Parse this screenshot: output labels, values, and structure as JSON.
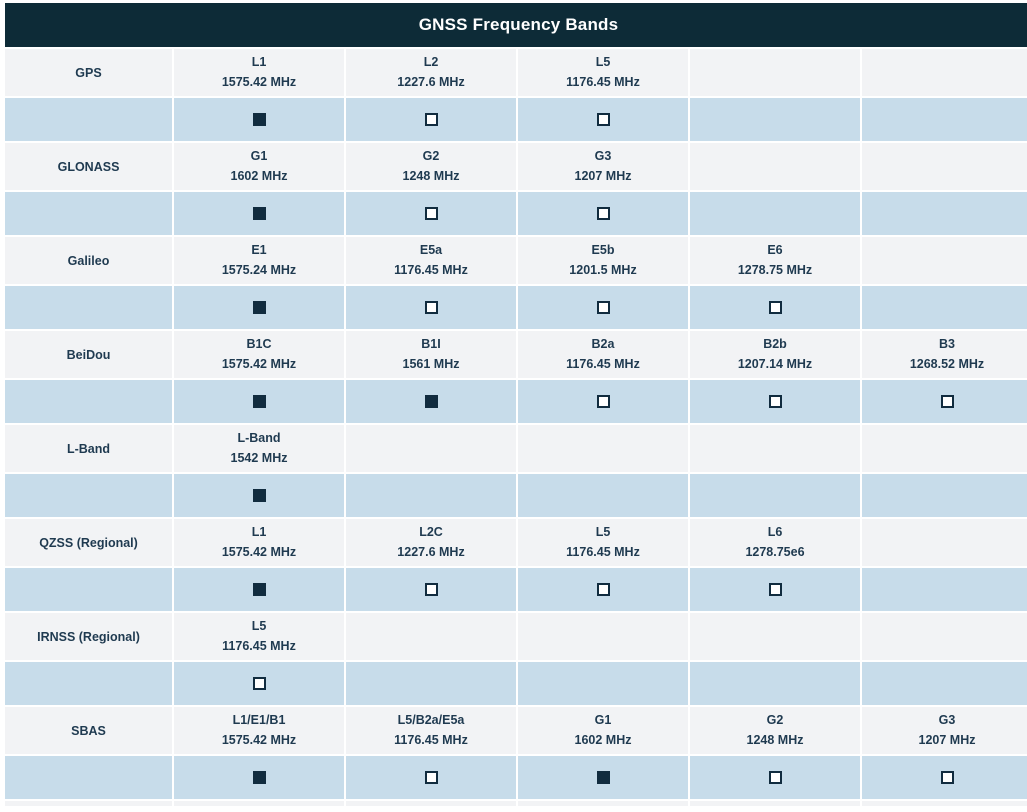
{
  "title": "GNSS Frequency Bands",
  "colors": {
    "header_bg": "#0d2b37",
    "header_text": "#ffffff",
    "band_row_bg": "#f2f3f5",
    "check_row_bg": "#c7dcea",
    "cell_text": "#1f3a50",
    "checkbox": "#112c3f"
  },
  "column_count": 6,
  "checkbox_legend": {
    "checked_icon": "filled-square",
    "unchecked_icon": "empty-square"
  },
  "systems": [
    {
      "name": "GPS",
      "bands": [
        {
          "band": "L1",
          "freq": "1575.42 MHz",
          "checked": true
        },
        {
          "band": "L2",
          "freq": "1227.6 MHz",
          "checked": false
        },
        {
          "band": "L5",
          "freq": "1176.45 MHz",
          "checked": false
        }
      ]
    },
    {
      "name": "GLONASS",
      "bands": [
        {
          "band": "G1",
          "freq": "1602 MHz",
          "checked": true
        },
        {
          "band": "G2",
          "freq": "1248 MHz",
          "checked": false
        },
        {
          "band": "G3",
          "freq": "1207 MHz",
          "checked": false
        }
      ]
    },
    {
      "name": "Galileo",
      "bands": [
        {
          "band": "E1",
          "freq": "1575.24 MHz",
          "checked": true
        },
        {
          "band": "E5a",
          "freq": "1176.45 MHz",
          "checked": false
        },
        {
          "band": "E5b",
          "freq": "1201.5 MHz",
          "checked": false
        },
        {
          "band": "E6",
          "freq": "1278.75 MHz",
          "checked": false
        }
      ]
    },
    {
      "name": "BeiDou",
      "bands": [
        {
          "band": "B1C",
          "freq": "1575.42 MHz",
          "checked": true
        },
        {
          "band": "B1I",
          "freq": "1561 MHz",
          "checked": true
        },
        {
          "band": "B2a",
          "freq": "1176.45 MHz",
          "checked": false
        },
        {
          "band": "B2b",
          "freq": "1207.14 MHz",
          "checked": false
        },
        {
          "band": "B3",
          "freq": "1268.52 MHz",
          "checked": false
        }
      ]
    },
    {
      "name": "L-Band",
      "bands": [
        {
          "band": "L-Band",
          "freq": "1542 MHz",
          "checked": true
        }
      ]
    },
    {
      "name": "QZSS (Regional)",
      "bands": [
        {
          "band": "L1",
          "freq": "1575.42 MHz",
          "checked": true
        },
        {
          "band": "L2C",
          "freq": "1227.6 MHz",
          "checked": false
        },
        {
          "band": "L5",
          "freq": "1176.45 MHz",
          "checked": false
        },
        {
          "band": "L6",
          "freq": "1278.75e6",
          "checked": false
        }
      ]
    },
    {
      "name": "IRNSS (Regional)",
      "bands": [
        {
          "band": "L5",
          "freq": "1176.45 MHz",
          "checked": false
        }
      ]
    },
    {
      "name": "SBAS",
      "bands": [
        {
          "band": "L1/E1/B1",
          "freq": "1575.42 MHz",
          "checked": true
        },
        {
          "band": "L5/B2a/E5a",
          "freq": "1176.45 MHz",
          "checked": false
        },
        {
          "band": "G1",
          "freq": "1602 MHz",
          "checked": true
        },
        {
          "band": "G2",
          "freq": "1248 MHz",
          "checked": false
        },
        {
          "band": "G3",
          "freq": "1207 MHz",
          "checked": false
        }
      ]
    }
  ]
}
